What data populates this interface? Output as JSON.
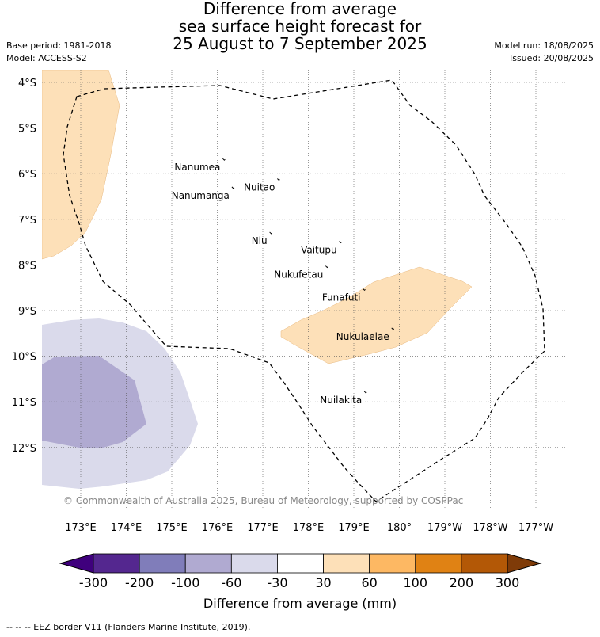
{
  "title": {
    "line1": "Difference from average",
    "line2": "sea surface height forecast for",
    "line3": "25 August to 7 September 2025"
  },
  "meta_left": {
    "base_period": "Base period: 1981-2018",
    "model": "Model: ACCESS-S2"
  },
  "meta_right": {
    "model_run": "Model run: 18/08/2025",
    "issued": "Issued: 20/08/2025"
  },
  "map": {
    "lat_labels": [
      "4°S",
      "5°S",
      "6°S",
      "7°S",
      "8°S",
      "9°S",
      "10°S",
      "11°S",
      "12°S"
    ],
    "lon_labels": [
      "173°E",
      "174°E",
      "175°E",
      "176°E",
      "177°E",
      "178°E",
      "179°E",
      "180°",
      "179°W",
      "178°W",
      "177°W"
    ],
    "places": [
      {
        "name": "Nanumea",
        "lon": 176.12,
        "lat": -5.67
      },
      {
        "name": "Nuitao",
        "lon": 177.32,
        "lat": -6.11
      },
      {
        "name": "Nanumanga",
        "lon": 176.32,
        "lat": -6.29
      },
      {
        "name": "Niu",
        "lon": 177.15,
        "lat": -7.28
      },
      {
        "name": "Vaitupu",
        "lon": 178.68,
        "lat": -7.48
      },
      {
        "name": "Nukufetau",
        "lon": 178.38,
        "lat": -8.02
      },
      {
        "name": "Funafuti",
        "lon": 179.2,
        "lat": -8.52
      },
      {
        "name": "Nukulaelae",
        "lon": 179.83,
        "lat": -9.38
      },
      {
        "name": "Nuilakita",
        "lon": 179.23,
        "lat": -10.77
      }
    ],
    "copyright": "© Commonwealth of Australia 2025, Bureau of Meteorology, supported by COSPPac",
    "grid": true
  },
  "colorbar": {
    "ticks": [
      "-300",
      "-200",
      "-100",
      "-60",
      "-30",
      "30",
      "60",
      "100",
      "200",
      "300"
    ],
    "colors": [
      "#54278f",
      "#807dba",
      "#b0aad1",
      "#dadaeb",
      "#ffffff",
      "#fde0b8",
      "#fdb863",
      "#e08214",
      "#b35806"
    ],
    "under_color": "#3f007d",
    "over_color": "#7f3b08",
    "label": "Difference from average (mm)"
  },
  "footnote": "--  --  -- EEZ border V11 (Flanders Marine Institute, 2019)."
}
